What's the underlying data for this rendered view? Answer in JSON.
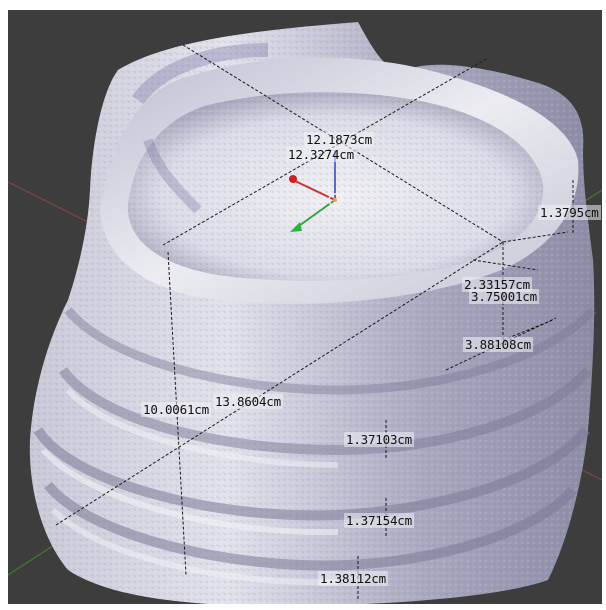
{
  "viewport": {
    "background_color": "#3d3d3d",
    "object_color": "#dedee8",
    "object_shadow_color": "#8a8aa2",
    "axis_x_color": "#b04a4a",
    "axis_y_color": "#5a9a3a",
    "gizmo_icons": [
      "origin-point-icon",
      "x-axis-arrow-icon",
      "y-axis-arrow-icon",
      "z-axis-arrow-icon"
    ]
  },
  "measurements": {
    "top_width": "12.1873cm",
    "top_depth": "12.3274cm",
    "rim_height_right": "1.3795cm",
    "step_1": "2.33157cm",
    "step_2": "3.75001cm",
    "step_3": "3.88108cm",
    "total_height": "10.0061cm",
    "base_diagonal": "13.8604cm",
    "ring_1": "1.37103cm",
    "ring_2": "1.37154cm",
    "ring_3": "1.38112cm"
  }
}
